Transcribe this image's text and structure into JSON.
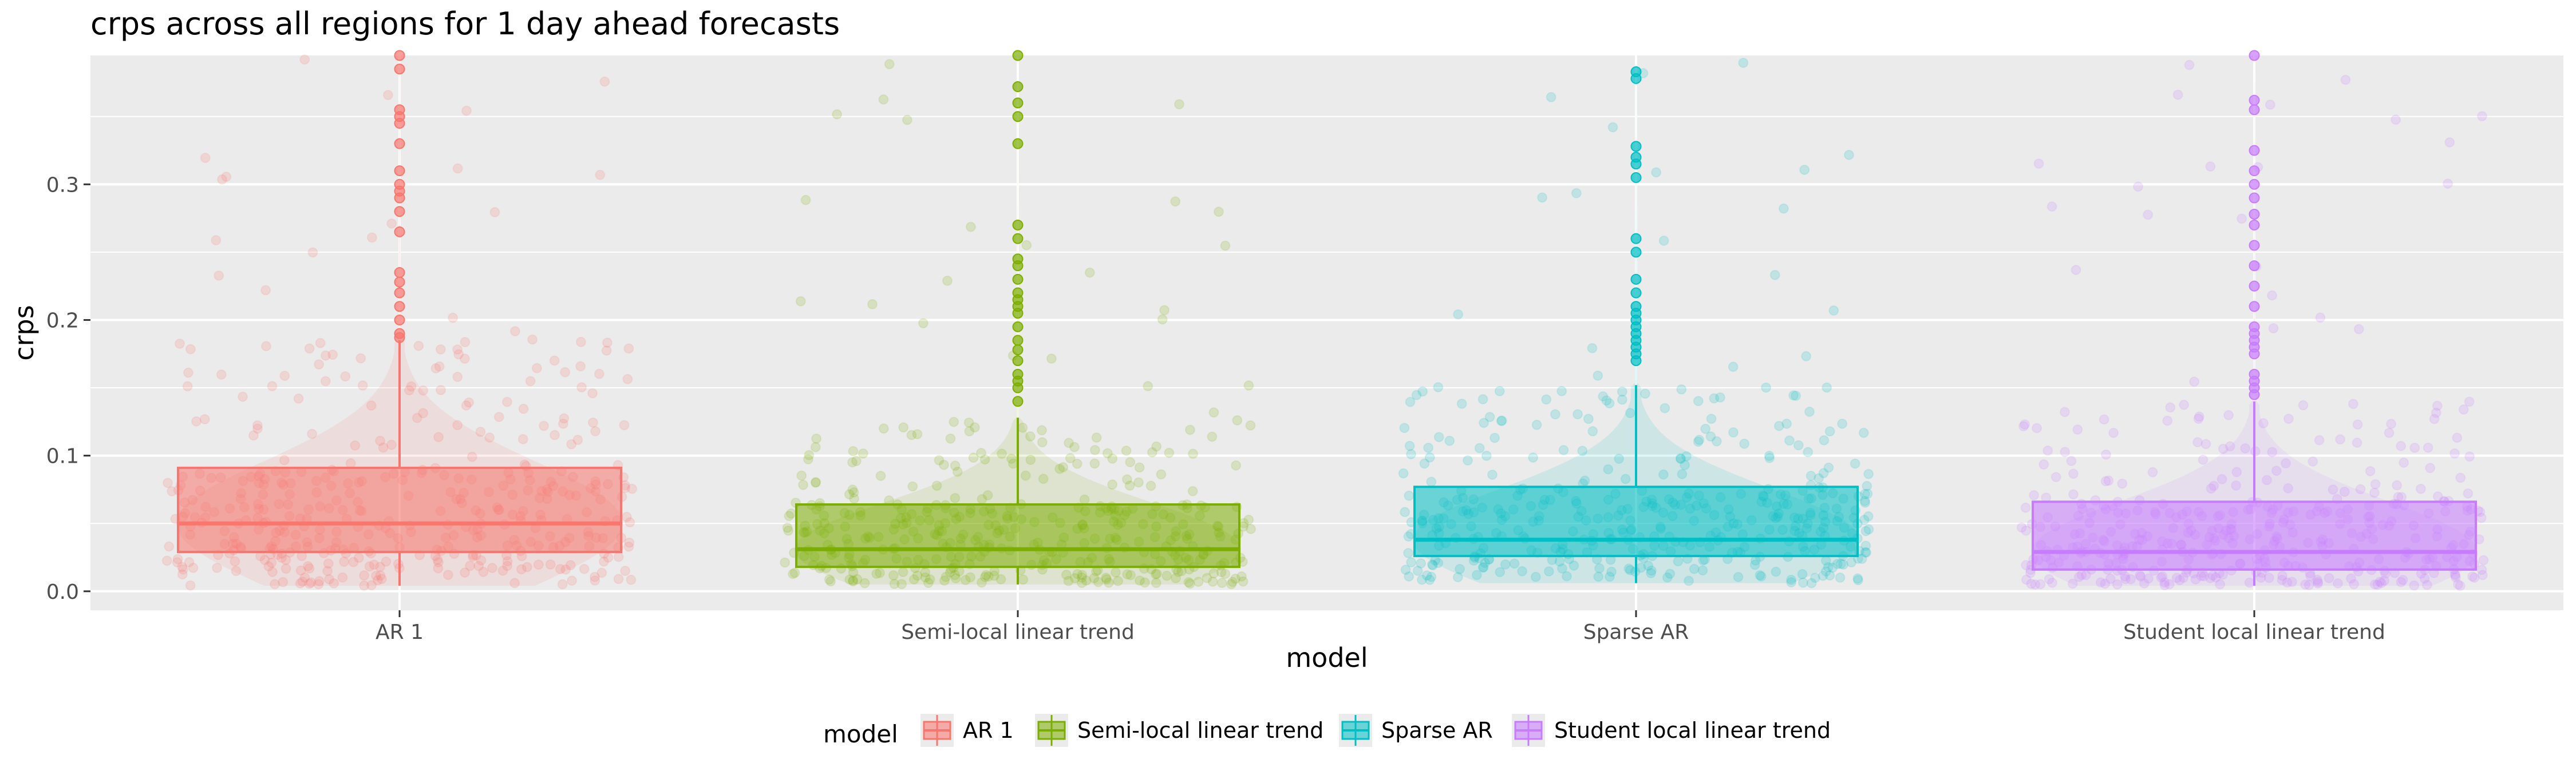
{
  "chart_data": {
    "type": "box",
    "title": "crps across all regions for 1 day ahead forecasts",
    "xlabel": "model",
    "ylabel": "crps",
    "ylim": [
      -0.014,
      0.395
    ],
    "y_ticks": [
      0.0,
      0.1,
      0.2,
      0.3
    ],
    "y_tick_labels": [
      "0.0",
      "0.1",
      "0.2",
      "0.3"
    ],
    "grid": true,
    "legend": {
      "title": "model",
      "position": "bottom"
    },
    "categories": [
      "AR 1",
      "Semi-local linear trend",
      "Sparse AR",
      "Student local linear trend"
    ],
    "series": [
      {
        "name": "AR 1",
        "color": "#F8766D",
        "box": {
          "lower_whisker": 0.004,
          "q1": 0.029,
          "median": 0.05,
          "q3": 0.091,
          "upper_whisker": 0.185
        },
        "outliers": [
          0.187,
          0.19,
          0.2,
          0.21,
          0.22,
          0.228,
          0.235,
          0.265,
          0.28,
          0.29,
          0.295,
          0.3,
          0.31,
          0.33,
          0.345,
          0.35,
          0.355,
          0.385,
          0.395
        ]
      },
      {
        "name": "Semi-local linear trend",
        "color": "#7CAE00",
        "box": {
          "lower_whisker": 0.005,
          "q1": 0.018,
          "median": 0.031,
          "q3": 0.064,
          "upper_whisker": 0.128
        },
        "outliers": [
          0.14,
          0.15,
          0.155,
          0.16,
          0.17,
          0.178,
          0.185,
          0.195,
          0.205,
          0.21,
          0.215,
          0.22,
          0.23,
          0.24,
          0.245,
          0.26,
          0.27,
          0.33,
          0.35,
          0.36,
          0.372,
          0.395
        ]
      },
      {
        "name": "Sparse AR",
        "color": "#00BFC4",
        "box": {
          "lower_whisker": 0.006,
          "q1": 0.026,
          "median": 0.038,
          "q3": 0.077,
          "upper_whisker": 0.152
        },
        "outliers": [
          0.17,
          0.175,
          0.18,
          0.185,
          0.19,
          0.195,
          0.2,
          0.205,
          0.21,
          0.22,
          0.23,
          0.25,
          0.26,
          0.305,
          0.315,
          0.32,
          0.328,
          0.378,
          0.383
        ]
      },
      {
        "name": "Student local linear trend",
        "color": "#C77CFF",
        "box": {
          "lower_whisker": 0.004,
          "q1": 0.016,
          "median": 0.029,
          "q3": 0.066,
          "upper_whisker": 0.14
        },
        "outliers": [
          0.145,
          0.15,
          0.155,
          0.16,
          0.175,
          0.18,
          0.185,
          0.19,
          0.195,
          0.21,
          0.225,
          0.24,
          0.255,
          0.27,
          0.278,
          0.29,
          0.3,
          0.31,
          0.325,
          0.355,
          0.362,
          0.395
        ]
      }
    ]
  }
}
